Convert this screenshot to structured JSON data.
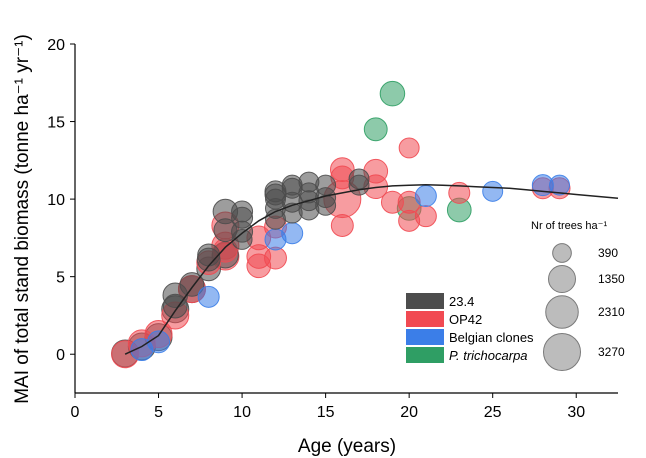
{
  "chart_data": {
    "type": "scatter",
    "xlabel": "Age (years)",
    "ylabel": "MAI of total stand biomass (tonne ha⁻¹ yr⁻¹)",
    "xlim": [
      0,
      32.5
    ],
    "ylim": [
      -2.5,
      20
    ],
    "xticks": [
      0,
      5,
      10,
      15,
      20,
      25,
      30
    ],
    "yticks": [
      0,
      5,
      10,
      15,
      20
    ],
    "grid": false,
    "legend": "bottom-right",
    "size_legend": {
      "title": "Nr of trees ha⁻¹",
      "entries": [
        {
          "label": "390",
          "density": 390
        },
        {
          "label": "1350",
          "density": 1350
        },
        {
          "label": "2310",
          "density": 2310
        },
        {
          "label": "3270",
          "density": 3270
        }
      ],
      "color": "#a6a6a6"
    },
    "fit_line": {
      "color": "#222222",
      "x": [
        3,
        4,
        5,
        6,
        7,
        8,
        9,
        10,
        11,
        12,
        13,
        14,
        15,
        16,
        17,
        18,
        19,
        20,
        21,
        22,
        23,
        24,
        25,
        26,
        27,
        28,
        29,
        30,
        31,
        32.5
      ],
      "y": [
        0,
        0.5,
        1.2,
        2.8,
        4.3,
        5.7,
        6.9,
        7.8,
        8.6,
        9.2,
        9.6,
        9.9,
        10.2,
        10.4,
        10.6,
        10.75,
        10.85,
        10.9,
        10.92,
        10.9,
        10.85,
        10.8,
        10.75,
        10.7,
        10.6,
        10.5,
        10.4,
        10.3,
        10.2,
        10.05
      ]
    },
    "series": [
      {
        "name": "23.4",
        "color": "#4d4d4d",
        "points": [
          {
            "x": 3,
            "y": 0.05,
            "d": 1350
          },
          {
            "x": 4,
            "y": 0.5,
            "d": 1350
          },
          {
            "x": 5,
            "y": 1.1,
            "d": 1350
          },
          {
            "x": 6,
            "y": 2.9,
            "d": 1350
          },
          {
            "x": 6,
            "y": 3.8,
            "d": 1000
          },
          {
            "x": 6,
            "y": 3.1,
            "d": 900
          },
          {
            "x": 7,
            "y": 4.2,
            "d": 1350
          },
          {
            "x": 7,
            "y": 4.5,
            "d": 900
          },
          {
            "x": 8,
            "y": 5.5,
            "d": 900
          },
          {
            "x": 8,
            "y": 6.1,
            "d": 800
          },
          {
            "x": 8,
            "y": 6.4,
            "d": 700
          },
          {
            "x": 9,
            "y": 6.4,
            "d": 1200
          },
          {
            "x": 9,
            "y": 9.2,
            "d": 1000
          },
          {
            "x": 9,
            "y": 8.0,
            "d": 800
          },
          {
            "x": 10,
            "y": 9.2,
            "d": 600
          },
          {
            "x": 10,
            "y": 8.8,
            "d": 600
          },
          {
            "x": 10,
            "y": 7.9,
            "d": 600
          },
          {
            "x": 10,
            "y": 7.4,
            "d": 500
          },
          {
            "x": 12,
            "y": 10.3,
            "d": 600
          },
          {
            "x": 12,
            "y": 10.5,
            "d": 600
          },
          {
            "x": 12,
            "y": 9.4,
            "d": 500
          },
          {
            "x": 12,
            "y": 8.7,
            "d": 500
          },
          {
            "x": 12,
            "y": 10.0,
            "d": 500
          },
          {
            "x": 13,
            "y": 10.7,
            "d": 500
          },
          {
            "x": 13,
            "y": 10.9,
            "d": 500
          },
          {
            "x": 13,
            "y": 9.8,
            "d": 500
          },
          {
            "x": 13,
            "y": 9.1,
            "d": 500
          },
          {
            "x": 14,
            "y": 11.1,
            "d": 500
          },
          {
            "x": 14,
            "y": 10.4,
            "d": 500
          },
          {
            "x": 14,
            "y": 9.9,
            "d": 500
          },
          {
            "x": 14,
            "y": 9.3,
            "d": 500
          },
          {
            "x": 15,
            "y": 10.9,
            "d": 500
          },
          {
            "x": 15,
            "y": 10.1,
            "d": 500
          },
          {
            "x": 15,
            "y": 9.6,
            "d": 500
          },
          {
            "x": 17,
            "y": 11.3,
            "d": 500
          },
          {
            "x": 17,
            "y": 10.9,
            "d": 500
          }
        ]
      },
      {
        "name": "OP42",
        "color": "#f14a52",
        "points": [
          {
            "x": 3,
            "y": 0.0,
            "d": 1350
          },
          {
            "x": 4,
            "y": 0.7,
            "d": 1350
          },
          {
            "x": 5,
            "y": 1.3,
            "d": 1350
          },
          {
            "x": 6,
            "y": 2.5,
            "d": 1350
          },
          {
            "x": 7,
            "y": 4.2,
            "d": 1350
          },
          {
            "x": 8,
            "y": 5.9,
            "d": 900
          },
          {
            "x": 9,
            "y": 6.3,
            "d": 1350
          },
          {
            "x": 9,
            "y": 7.0,
            "d": 1350
          },
          {
            "x": 9,
            "y": 8.3,
            "d": 1350
          },
          {
            "x": 9,
            "y": 6.7,
            "d": 900
          },
          {
            "x": 11,
            "y": 5.7,
            "d": 900
          },
          {
            "x": 11,
            "y": 6.3,
            "d": 900
          },
          {
            "x": 11,
            "y": 7.5,
            "d": 900
          },
          {
            "x": 12,
            "y": 8.2,
            "d": 700
          },
          {
            "x": 12,
            "y": 6.2,
            "d": 700
          },
          {
            "x": 16,
            "y": 10.0,
            "d": 3270
          },
          {
            "x": 16,
            "y": 11.9,
            "d": 900
          },
          {
            "x": 16,
            "y": 11.4,
            "d": 800
          },
          {
            "x": 16,
            "y": 8.3,
            "d": 700
          },
          {
            "x": 18,
            "y": 11.8,
            "d": 900
          },
          {
            "x": 18,
            "y": 10.8,
            "d": 900
          },
          {
            "x": 19,
            "y": 9.8,
            "d": 700
          },
          {
            "x": 20,
            "y": 13.3,
            "d": 500
          },
          {
            "x": 20,
            "y": 9.8,
            "d": 700
          },
          {
            "x": 20,
            "y": 8.6,
            "d": 600
          },
          {
            "x": 21,
            "y": 8.9,
            "d": 600
          },
          {
            "x": 23,
            "y": 10.4,
            "d": 600
          },
          {
            "x": 28,
            "y": 10.7,
            "d": 600
          },
          {
            "x": 29,
            "y": 10.7,
            "d": 600
          }
        ]
      },
      {
        "name": "Belgian clones",
        "color": "#3b7ee8",
        "points": [
          {
            "x": 4,
            "y": 0.3,
            "d": 700
          },
          {
            "x": 5,
            "y": 0.8,
            "d": 700
          },
          {
            "x": 8,
            "y": 3.7,
            "d": 600
          },
          {
            "x": 12,
            "y": 7.4,
            "d": 600
          },
          {
            "x": 13,
            "y": 7.8,
            "d": 600
          },
          {
            "x": 21,
            "y": 10.2,
            "d": 600
          },
          {
            "x": 25,
            "y": 10.5,
            "d": 500
          },
          {
            "x": 28,
            "y": 10.9,
            "d": 600
          },
          {
            "x": 29,
            "y": 10.9,
            "d": 500
          }
        ]
      },
      {
        "name": "P. trichocarpa",
        "color": "#2f9e64",
        "points": [
          {
            "x": 19,
            "y": 16.8,
            "d": 1000
          },
          {
            "x": 18,
            "y": 14.5,
            "d": 800
          },
          {
            "x": 20,
            "y": 9.4,
            "d": 900
          },
          {
            "x": 23,
            "y": 9.3,
            "d": 900
          }
        ]
      }
    ]
  }
}
